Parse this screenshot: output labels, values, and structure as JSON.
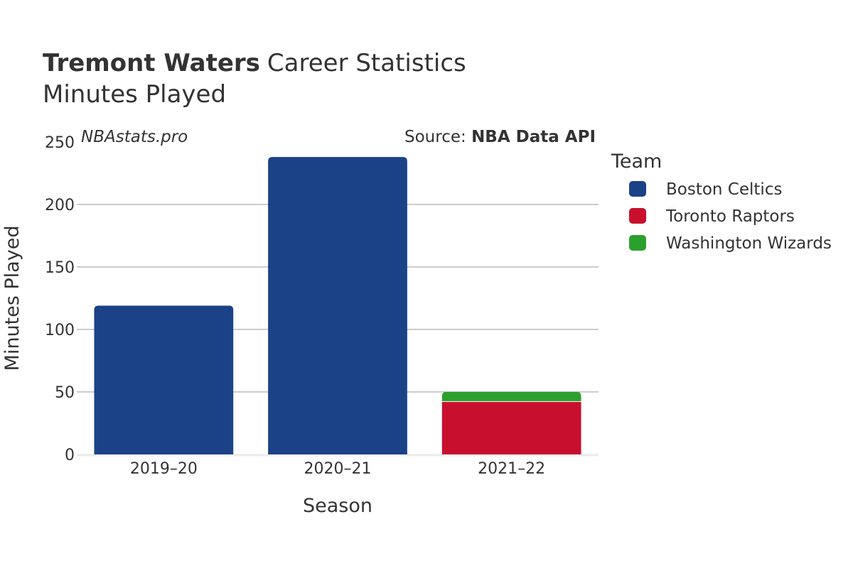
{
  "title": {
    "player": "Tremont Waters",
    "rest": "Career Statistics",
    "subtitle": "Minutes Played"
  },
  "watermark": "NBAstats.pro",
  "source": {
    "prefix": "Source: ",
    "name": "NBA Data API"
  },
  "legend": {
    "title": "Team",
    "placement": "right"
  },
  "chart_data": {
    "type": "bar",
    "stacked": true,
    "categories": [
      "2019–20",
      "2020–21",
      "2021–22"
    ],
    "series": [
      {
        "name": "Boston Celtics",
        "color": "#1b4287",
        "values": [
          119,
          238,
          0
        ]
      },
      {
        "name": "Toronto Raptors",
        "color": "#c8102e",
        "values": [
          0,
          0,
          42
        ]
      },
      {
        "name": "Washington Wizards",
        "color": "#2ca02c",
        "values": [
          0,
          0,
          8
        ]
      }
    ],
    "xlabel": "Season",
    "ylabel": "Minutes Played",
    "ylim": [
      0,
      250
    ],
    "yticks": [
      0,
      50,
      100,
      150,
      200,
      250
    ],
    "grid": true
  }
}
